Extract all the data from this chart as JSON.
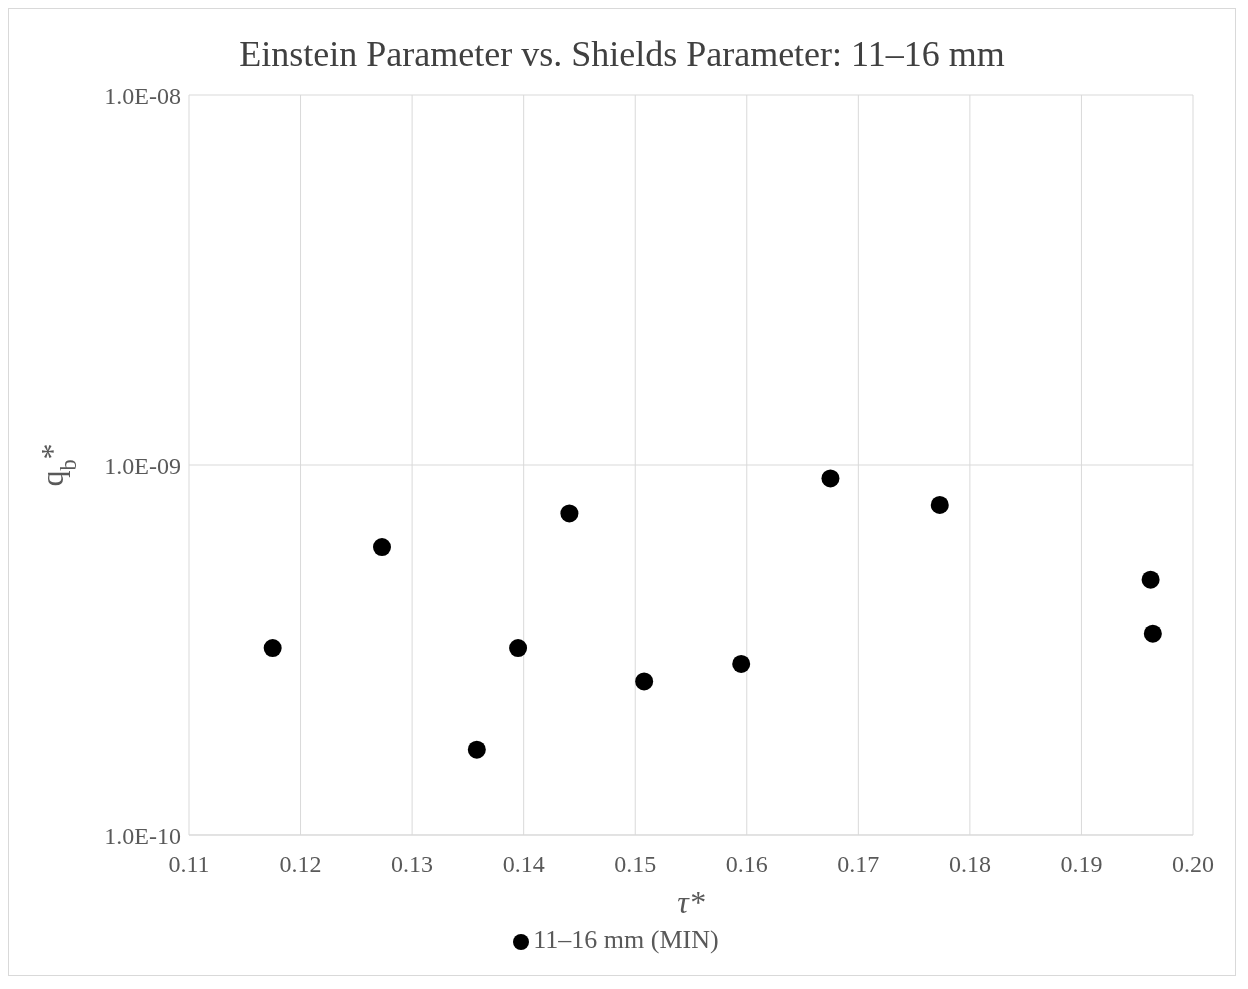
{
  "chart_data": {
    "type": "scatter",
    "title": "Einstein Parameter vs. Shields Parameter: 11–16 mm",
    "xlabel": "τ*",
    "ylabel": "q$_{b}$*",
    "x": [
      0.1175,
      0.1273,
      0.1358,
      0.1395,
      0.1441,
      0.1508,
      0.1595,
      0.1675,
      0.1773,
      0.1962,
      0.1964
    ],
    "series": [
      {
        "name": "11–16 mm (MIN)",
        "color": "#000000",
        "values": [
          3.2e-10,
          6e-10,
          1.7e-10,
          3.2e-10,
          7.4e-10,
          2.6e-10,
          2.9e-10,
          9.2e-10,
          7.8e-10,
          4.9e-10,
          3.5e-10
        ]
      }
    ],
    "xlim": [
      0.11,
      0.2
    ],
    "xticks": [
      {
        "value": 0.11,
        "label": "0.11"
      },
      {
        "value": 0.12,
        "label": "0.12"
      },
      {
        "value": 0.13,
        "label": "0.13"
      },
      {
        "value": 0.14,
        "label": "0.14"
      },
      {
        "value": 0.15,
        "label": "0.15"
      },
      {
        "value": 0.16,
        "label": "0.16"
      },
      {
        "value": 0.17,
        "label": "0.17"
      },
      {
        "value": 0.18,
        "label": "0.18"
      },
      {
        "value": 0.19,
        "label": "0.19"
      },
      {
        "value": 0.2,
        "label": "0.20"
      }
    ],
    "ylim": [
      1e-10,
      1e-08
    ],
    "yticks": [
      {
        "value": 1e-10,
        "label": "1.0E-10"
      },
      {
        "value": 1e-09,
        "label": "1.0E-09"
      },
      {
        "value": 1e-08,
        "label": "1.0E-08"
      }
    ],
    "log": "y",
    "grid": true,
    "legend": "bottom",
    "marker": "circle"
  }
}
